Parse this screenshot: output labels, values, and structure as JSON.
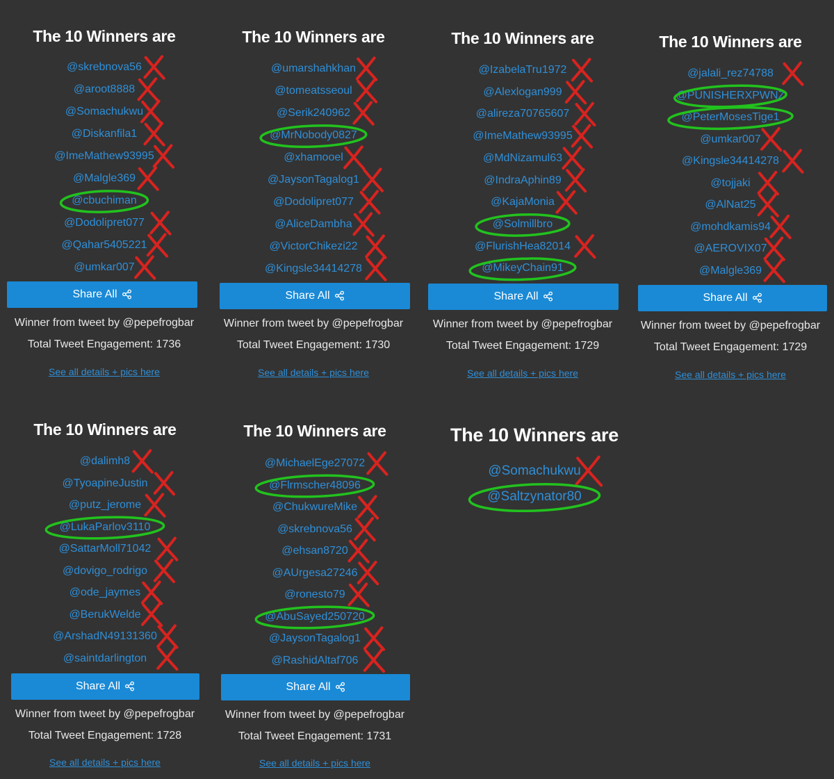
{
  "common": {
    "title": "The 10 Winners are",
    "share_label": "Share All",
    "winner_from": "Winner from tweet by @pepefrogbar",
    "details_link": "See all details + pics here",
    "engagement_prefix": "Total Tweet Engagement: "
  },
  "panels": [
    {
      "engagement": "Total Tweet Engagement: 1736",
      "winners": [
        "@skrebnova56",
        "@aroot8888",
        "@Somachukwu",
        "@Diskanfila1",
        "@ImeMathew93995",
        "@Malgle369",
        "@cbuchiman",
        "@Dodolipret077",
        "@Qahar5405221",
        "@umkar007"
      ],
      "circled": [
        6
      ]
    },
    {
      "engagement": "Total Tweet Engagement: 1730",
      "winners": [
        "@umarshahkhan",
        "@tomeatsseoul",
        "@Serik240962",
        "@MrNobody0827",
        "@xhamooel",
        "@JaysonTagalog1",
        "@Dodolipret077",
        "@AliceDambha",
        "@VictorChikezi22",
        "@Kingsle34414278"
      ],
      "circled": [
        3
      ]
    },
    {
      "engagement": "Total Tweet Engagement: 1729",
      "winners": [
        "@IzabelaTru1972",
        "@Alexlogan999",
        "@alireza70765607",
        "@ImeMathew93995",
        "@MdNizamul63",
        "@IndraAphin89",
        "@KajaMonia",
        "@Solmillbro",
        "@FlurishHea82014",
        "@MikeyChain91"
      ],
      "circled": [
        7,
        9
      ]
    },
    {
      "engagement": "Total Tweet Engagement: 1729",
      "winners": [
        "@jalali_rez74788",
        "@PUNISHERXPWNZ",
        "@PeterMosesTige1",
        "@umkar007",
        "@Kingsle34414278",
        "@tojjaki",
        "@AlNat25",
        "@mohdkamis94",
        "@AEROVIX07",
        "@Malgle369"
      ],
      "circled": [
        1,
        2
      ]
    },
    {
      "engagement": "Total Tweet Engagement: 1728",
      "winners": [
        "@dalimh8",
        "@TyoapineJustin",
        "@putz_jerome",
        "@LukaParlov3110",
        "@SattarMoll71042",
        "@dovigo_rodrigo",
        "@ode_jaymes",
        "@BerukWelde",
        "@ArshadN49131360",
        "@saintdarlington"
      ],
      "circled": [
        3
      ]
    },
    {
      "engagement": "Total Tweet Engagement: 1731",
      "winners": [
        "@MichaelEge27072",
        "@Flrmscher48096",
        "@ChukwureMike",
        "@skrebnova56",
        "@ehsan8720",
        "@AUrgesa27246",
        "@ronesto79",
        "@AbuSayed250720",
        "@JaysonTagalog1",
        "@RashidAltaf706"
      ],
      "circled": [
        1,
        7
      ]
    },
    {
      "winners": [
        "@Somachukwu",
        "@Saltzynator80"
      ],
      "circled": [
        1
      ]
    }
  ],
  "colors": {
    "bg": "#333333",
    "link": "#2f8fd8",
    "button": "#1a8ad6",
    "cross": "#d8231f",
    "circle": "#22c21e"
  }
}
